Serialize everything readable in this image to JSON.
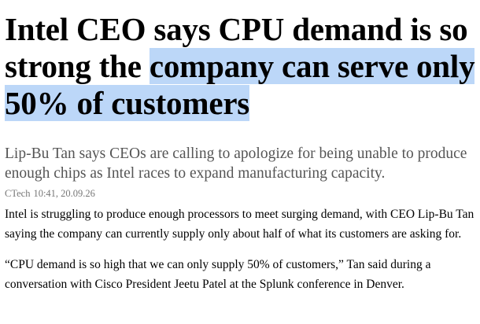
{
  "header": {
    "headline_plain": "Intel CEO says CPU demand is so strong the",
    "headline_highlighted": "company can serve only 50% of customers",
    "subtitle": "Lip-Bu Tan says CEOs are calling to apologize for being unable to produce enough chips as Intel races to expand manufacturing capacity."
  },
  "byline": {
    "source": "CTech",
    "timestamp": "10:41, 20.09.26"
  },
  "body": {
    "paragraphs": [
      "Intel is struggling to produce enough processors to meet surging demand, with CEO Lip-Bu Tan saying the company can currently supply only about half of what its customers are asking for.",
      "“CPU demand is so high that we can only supply 50% of customers,” Tan said during a conversation with Cisco President Jeetu Patel at the Splunk conference in Denver."
    ]
  }
}
